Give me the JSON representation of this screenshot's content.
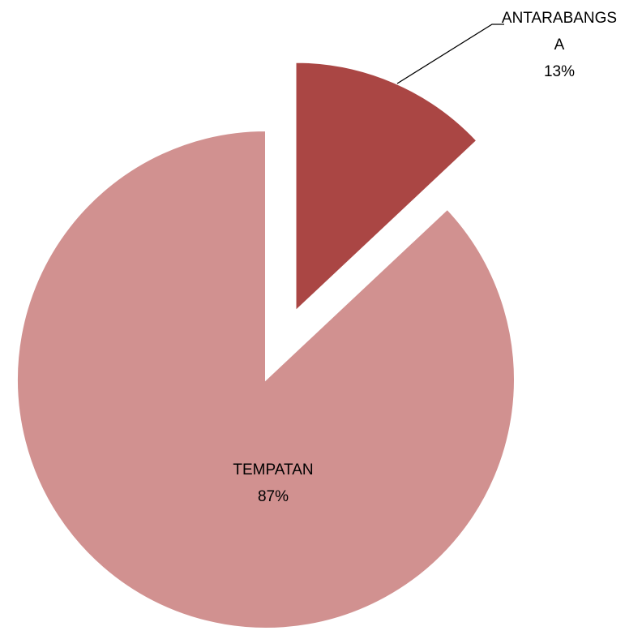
{
  "chart_data": {
    "type": "pie",
    "categories": [
      "ANTARABANGSA",
      "TEMPATAN"
    ],
    "values": [
      13,
      87
    ],
    "value_labels": [
      "13%",
      "87%"
    ],
    "colors": [
      "#aa4644",
      "#d19190"
    ],
    "explode": [
      0
    ]
  }
}
